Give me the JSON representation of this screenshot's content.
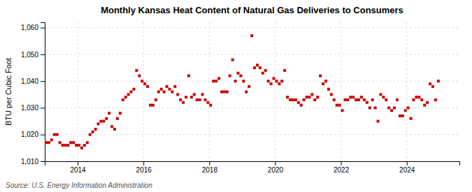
{
  "chart_data": {
    "type": "scatter",
    "title": "Monthly Kansas Heat Content of Natural Gas Deliveries to Consumers",
    "y_label": "BTU per Cubic Foot",
    "annotations": [
      "Source: U.S. Energy Information Administration"
    ],
    "color": "#cc0000",
    "marker": "square",
    "grid": true,
    "xlim": [
      2013.0,
      2025.6
    ],
    "xticks": [
      2014,
      2016,
      2018,
      2020,
      2022,
      2024
    ],
    "ylim": [
      1010,
      1062
    ],
    "yticks": [
      {
        "value": 1010,
        "label": "1,010"
      },
      {
        "value": 1020,
        "label": "1,020"
      },
      {
        "value": 1030,
        "label": "1,030"
      },
      {
        "value": 1040,
        "label": "1,040"
      },
      {
        "value": 1050,
        "label": "1,050"
      },
      {
        "value": 1060,
        "label": "1,060"
      }
    ],
    "x": [
      2013.0416666666667,
      2013.125,
      2013.2083333333333,
      2013.2916666666667,
      2013.375,
      2013.4583333333333,
      2013.5416666666667,
      2013.625,
      2013.7083333333333,
      2013.7916666666667,
      2013.875,
      2013.9583333333333,
      2014.0416666666667,
      2014.125,
      2014.2083333333333,
      2014.2916666666667,
      2014.375,
      2014.4583333333333,
      2014.5416666666667,
      2014.625,
      2014.7083333333333,
      2014.7916666666667,
      2014.875,
      2014.9583333333333,
      2015.0416666666667,
      2015.125,
      2015.2083333333333,
      2015.2916666666667,
      2015.375,
      2015.4583333333333,
      2015.5416666666667,
      2015.625,
      2015.7083333333333,
      2015.7916666666667,
      2015.875,
      2015.9583333333333,
      2016.0416666666667,
      2016.125,
      2016.2083333333333,
      2016.2916666666667,
      2016.375,
      2016.4583333333333,
      2016.5416666666667,
      2016.625,
      2016.7083333333333,
      2016.7916666666667,
      2016.875,
      2016.9583333333333,
      2017.0416666666667,
      2017.125,
      2017.2083333333333,
      2017.2916666666667,
      2017.375,
      2017.4583333333333,
      2017.5416666666667,
      2017.625,
      2017.7083333333333,
      2017.7916666666667,
      2017.875,
      2017.9583333333333,
      2018.0416666666667,
      2018.125,
      2018.2083333333333,
      2018.2916666666667,
      2018.375,
      2018.4583333333333,
      2018.5416666666667,
      2018.625,
      2018.7083333333333,
      2018.7916666666667,
      2018.875,
      2018.9583333333333,
      2019.0416666666667,
      2019.125,
      2019.2083333333333,
      2019.2916666666667,
      2019.375,
      2019.4583333333333,
      2019.5416666666667,
      2019.625,
      2019.7083333333333,
      2019.7916666666667,
      2019.875,
      2019.9583333333333,
      2020.0416666666667,
      2020.125,
      2020.2083333333333,
      2020.2916666666667,
      2020.375,
      2020.4583333333333,
      2020.5416666666667,
      2020.625,
      2020.7083333333333,
      2020.7916666666667,
      2020.875,
      2020.9583333333333,
      2021.0416666666667,
      2021.125,
      2021.2083333333333,
      2021.2916666666667,
      2021.375,
      2021.4583333333333,
      2021.5416666666667,
      2021.625,
      2021.7083333333333,
      2021.7916666666667,
      2021.875,
      2021.9583333333333,
      2022.0416666666667,
      2022.125,
      2022.2083333333333,
      2022.2916666666667,
      2022.375,
      2022.4583333333333,
      2022.5416666666667,
      2022.625,
      2022.7083333333333,
      2022.7916666666667,
      2022.875,
      2022.9583333333333,
      2023.0416666666667,
      2023.125,
      2023.2083333333333,
      2023.2916666666667,
      2023.375,
      2023.4583333333333,
      2023.5416666666667,
      2023.625,
      2023.7083333333333,
      2023.7916666666667,
      2023.875,
      2023.9583333333333,
      2024.0416666666667,
      2024.125,
      2024.2083333333333,
      2024.2916666666667,
      2024.375,
      2024.4583333333333,
      2024.5416666666667,
      2024.625,
      2024.7083333333333,
      2024.7916666666667,
      2024.875,
      2024.9583333333333
    ],
    "values": [
      1017,
      1017,
      1018,
      1020,
      1020,
      1017,
      1016,
      1016,
      1016,
      1017,
      1017,
      1016,
      1016,
      1015,
      1016,
      1017,
      1020,
      1021,
      1022,
      1024,
      1025,
      1025,
      1026,
      1028,
      1023,
      1022,
      1026,
      1028,
      1033,
      1034,
      1035,
      1036,
      1037,
      1044,
      1042,
      1040,
      1039,
      1038,
      1031,
      1031,
      1033,
      1036,
      1037,
      1036,
      1038,
      1037,
      1036,
      1038,
      1035,
      1033,
      1032,
      1034,
      1042,
      1034,
      1035,
      1033,
      1033,
      1035,
      1033,
      1032,
      1031,
      1040,
      1040,
      1041,
      1036,
      1036,
      1036,
      1042,
      1048,
      1040,
      1043,
      1042,
      1040,
      1036,
      1038,
      1057,
      1045,
      1046,
      1045,
      1043,
      1044,
      1040,
      1039,
      1041,
      1040,
      1039,
      1040,
      1044,
      1034,
      1033,
      1033,
      1033,
      1032,
      1031,
      1033,
      1034,
      1034,
      1035,
      1033,
      1034,
      1042,
      1039,
      1040,
      1037,
      1035,
      1033,
      1031,
      1031,
      1029,
      1033,
      1033,
      1034,
      1034,
      1033,
      1033,
      1034,
      1033,
      1032,
      1030,
      1033,
      1030,
      1025,
      1035,
      1034,
      1033,
      1030,
      1029,
      1030,
      1033,
      1027,
      1027,
      1029,
      1030,
      1026,
      1033,
      1034,
      1034,
      1033,
      1031,
      1032,
      1039,
      1038,
      1033,
      1040
    ]
  }
}
